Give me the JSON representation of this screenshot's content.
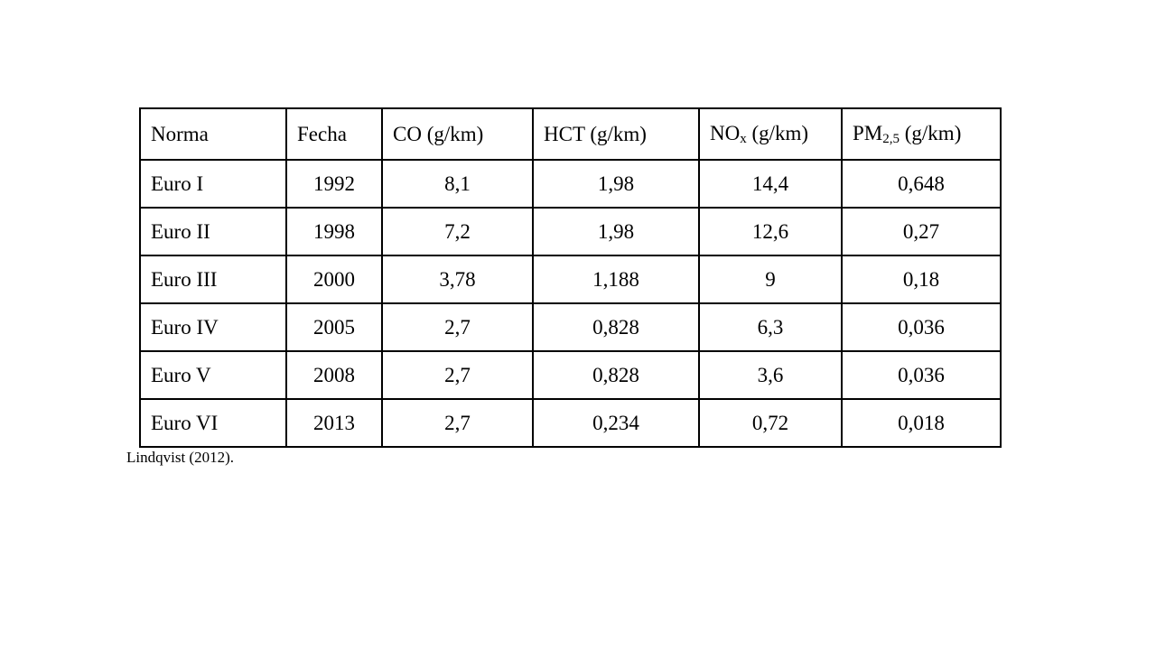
{
  "table": {
    "header": [
      "Norma",
      "Fecha",
      "CO (g/km)",
      "HCT (g/km)",
      {
        "base": "NO",
        "sub": "x",
        "unit": " (g/km)"
      },
      {
        "base": "PM",
        "sub": "2,5",
        "unit": " (g/km)"
      }
    ],
    "rows": [
      [
        "Euro I",
        "1992",
        "8,1",
        "1,98",
        "14,4",
        "0,648"
      ],
      [
        "Euro II",
        "1998",
        "7,2",
        "1,98",
        "12,6",
        "0,27"
      ],
      [
        "Euro III",
        "2000",
        "3,78",
        "1,188",
        "9",
        "0,18"
      ],
      [
        "Euro IV",
        "2005",
        "2,7",
        "0,828",
        "6,3",
        "0,036"
      ],
      [
        "Euro V",
        "2008",
        "2,7",
        "0,828",
        "3,6",
        "0,036"
      ],
      [
        "Euro VI",
        "2013",
        "2,7",
        "0,234",
        "0,72",
        "0,018"
      ]
    ]
  },
  "source": "Lindqvist (2012)."
}
